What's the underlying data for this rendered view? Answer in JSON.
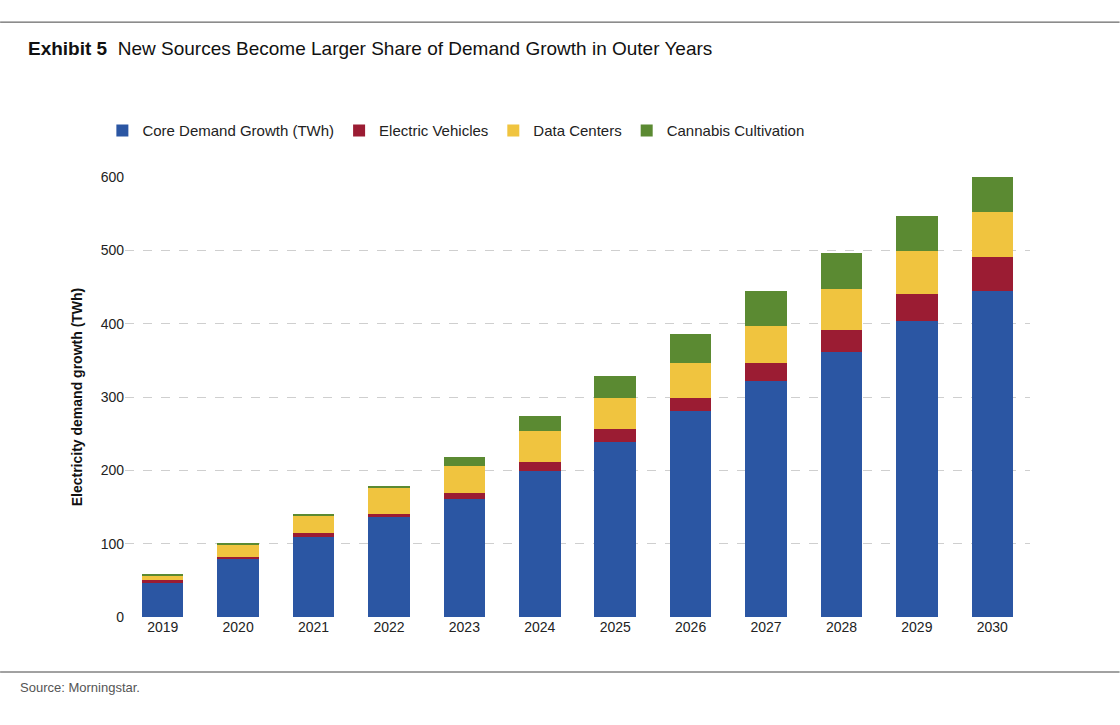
{
  "chart_data": {
    "type": "bar",
    "title": "Exhibit 5 New Sources Become Larger Share of Demand Growth in Outer Years",
    "y_label": "Electricity demand growth (TWh)",
    "source": "Source: Morningstar.",
    "categories": [
      "2019",
      "2020",
      "2021",
      "2022",
      "2023",
      "2024",
      "2025",
      "2026",
      "2027",
      "2028",
      "2029",
      "2030"
    ],
    "series": [
      {
        "name": "Core Demand Growth (TWh)",
        "color": "#2b56a3",
        "values": [
          47,
          79,
          109,
          136,
          161,
          199,
          239,
          281,
          322,
          362,
          404,
          445
        ]
      },
      {
        "name": "Electric Vehicles",
        "color": "#9b1c33",
        "values": [
          3,
          3,
          5,
          5,
          8,
          12,
          17,
          18,
          24,
          30,
          37,
          46
        ]
      },
      {
        "name": "Data Centers",
        "color": "#f0c43f",
        "values": [
          7,
          17,
          24,
          35,
          37,
          43,
          43,
          48,
          51,
          55,
          58,
          61
        ]
      },
      {
        "name": "Cannabis Cultivation",
        "color": "#5b8a32",
        "values": [
          1,
          2,
          3,
          2,
          12,
          20,
          30,
          39,
          47,
          50,
          48,
          48
        ]
      }
    ],
    "stacked": true,
    "ylim": [
      0,
      600
    ],
    "yticks": [
      0,
      100,
      200,
      300,
      400,
      500,
      600
    ],
    "grid": true,
    "legend": "top"
  }
}
